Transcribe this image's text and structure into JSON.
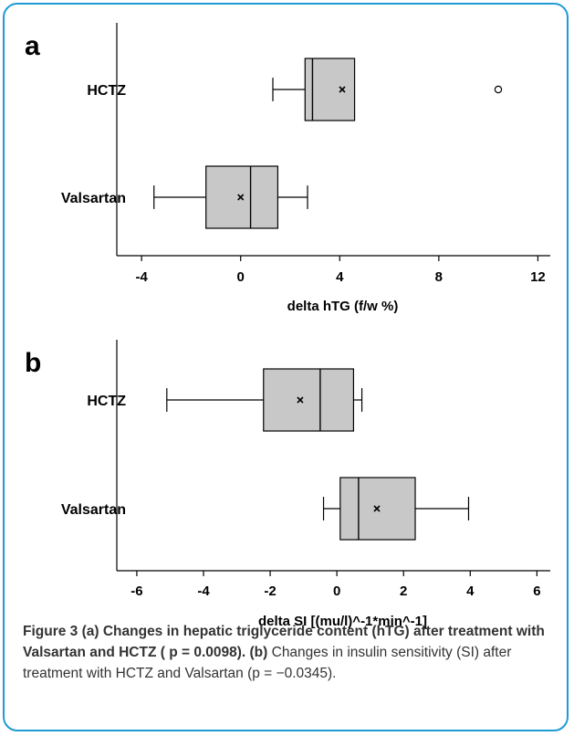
{
  "chart_data": [
    {
      "panel": "a",
      "type": "boxplot",
      "xlabel": "delta hTG (f/w %)",
      "xlim": [
        -5,
        12.5
      ],
      "xticks": [
        -4,
        0,
        4,
        8,
        12
      ],
      "categories": [
        "HCTZ",
        "Valsartan"
      ],
      "boxes": [
        {
          "name": "HCTZ",
          "whisker_low": 1.3,
          "q1": 2.6,
          "median": 2.9,
          "q3": 4.6,
          "whisker_high": 4.6,
          "mean": 4.1,
          "outliers": [
            10.4
          ]
        },
        {
          "name": "Valsartan",
          "whisker_low": -3.5,
          "q1": -1.4,
          "median": 0.4,
          "q3": 1.5,
          "whisker_high": 2.7,
          "mean": 0.0,
          "outliers": []
        }
      ],
      "box_color": "#c8c8c8"
    },
    {
      "panel": "b",
      "type": "boxplot",
      "xlabel": "delta SI [(mu/l)^-1*min^-1]",
      "xlim": [
        -6.6,
        6.4
      ],
      "xticks": [
        -6,
        -4,
        -2,
        0,
        2,
        4,
        6
      ],
      "categories": [
        "HCTZ",
        "Valsartan"
      ],
      "boxes": [
        {
          "name": "HCTZ",
          "whisker_low": -5.1,
          "q1": -2.2,
          "median": -0.5,
          "q3": 0.5,
          "whisker_high": 0.75,
          "mean": -1.1,
          "outliers": []
        },
        {
          "name": "Valsartan",
          "whisker_low": -0.4,
          "q1": 0.1,
          "median": 0.65,
          "q3": 2.35,
          "whisker_high": 3.95,
          "mean": 1.2,
          "outliers": []
        }
      ],
      "box_color": "#c8c8c8"
    }
  ],
  "caption": {
    "lead": "Figure 3 (a) Changes in hepatic triglyceride content (hTG) after treatment with Valsartan and HCTZ ( p = 0.0098). (b)",
    "rest": " Changes in insulin sensitivity (SI) after treatment with HCTZ and Valsartan (p = −0.0345)."
  },
  "colors": {
    "frame_border": "#1f9bd4",
    "box_fill": "#c8c8c8"
  }
}
